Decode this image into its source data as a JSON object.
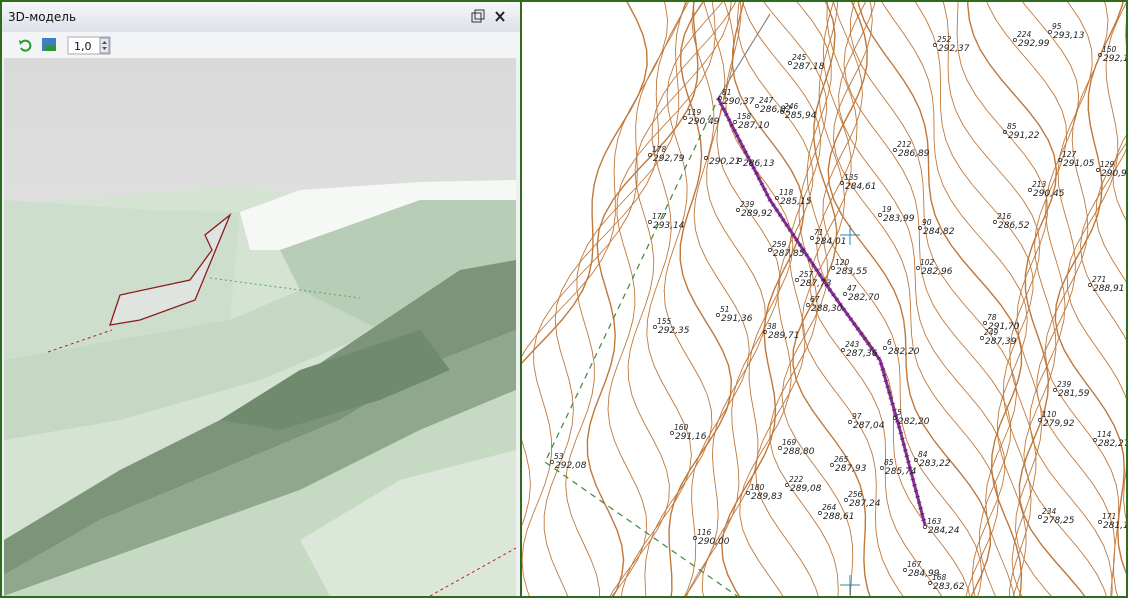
{
  "panel": {
    "title": "3D-модель",
    "scale": "1,0"
  },
  "map": {
    "labels": [
      {
        "id": "81",
        "elev": "290,37"
      },
      {
        "id": "119",
        "elev": "290,49"
      },
      {
        "id": "158",
        "elev": "287,10"
      },
      {
        "id": "247",
        "elev": "286,82"
      },
      {
        "id": "246",
        "elev": "285,94"
      },
      {
        "id": "245",
        "elev": "287,18"
      },
      {
        "id": "252",
        "elev": "292,37"
      },
      {
        "id": "224",
        "elev": "292,99"
      },
      {
        "id": "95",
        "elev": "293,13"
      },
      {
        "id": "150",
        "elev": "292,17"
      },
      {
        "id": "85",
        "elev": "291,22"
      },
      {
        "id": "212",
        "elev": "286,89"
      },
      {
        "id": "178",
        "elev": "292,79"
      },
      {
        "elev": "290,21"
      },
      {
        "elev": "286,13"
      },
      {
        "id": "127",
        "elev": "291,05"
      },
      {
        "id": "129",
        "elev": "290,97"
      },
      {
        "id": "135",
        "elev": "284,61"
      },
      {
        "id": "213",
        "elev": "290,45"
      },
      {
        "id": "118",
        "elev": "285,15"
      },
      {
        "id": "239",
        "elev": "289,92"
      },
      {
        "id": "177",
        "elev": "293,14"
      },
      {
        "id": "19",
        "elev": "283,99"
      },
      {
        "id": "90",
        "elev": "284,82"
      },
      {
        "id": "216",
        "elev": "286,52"
      },
      {
        "id": "71",
        "elev": "284,01"
      },
      {
        "id": "259",
        "elev": "287,85"
      },
      {
        "id": "120",
        "elev": "283,55"
      },
      {
        "id": "102",
        "elev": "282,96"
      },
      {
        "id": "257",
        "elev": "287,73"
      },
      {
        "id": "47",
        "elev": "282,70"
      },
      {
        "id": "271",
        "elev": "288,91"
      },
      {
        "id": "67",
        "elev": "288,30"
      },
      {
        "id": "51",
        "elev": "291,36"
      },
      {
        "id": "155",
        "elev": "292,35"
      },
      {
        "id": "38",
        "elev": "289,71"
      },
      {
        "id": "78",
        "elev": "291,70"
      },
      {
        "id": "249",
        "elev": "287,39"
      },
      {
        "id": "6",
        "elev": "282,20"
      },
      {
        "id": "243",
        "elev": "287,36"
      },
      {
        "id": "239",
        "elev": "281,59"
      },
      {
        "id": "97",
        "elev": "287,04"
      },
      {
        "id": "5",
        "elev": "282,20"
      },
      {
        "id": "110",
        "elev": "279,92"
      },
      {
        "id": "114",
        "elev": "282,27"
      },
      {
        "id": "160",
        "elev": "291,16"
      },
      {
        "id": "169",
        "elev": "288,80"
      },
      {
        "id": "84",
        "elev": "283,22"
      },
      {
        "id": "265",
        "elev": "287,93"
      },
      {
        "id": "85",
        "elev": "285,74"
      },
      {
        "id": "53",
        "elev": "292,08"
      },
      {
        "id": "222",
        "elev": "289,08"
      },
      {
        "id": "180",
        "elev": "289,83"
      },
      {
        "id": "256",
        "elev": "287,24"
      },
      {
        "id": "264",
        "elev": "288,61"
      },
      {
        "id": "234",
        "elev": "278,25"
      },
      {
        "id": "171",
        "elev": "281,13"
      },
      {
        "id": "163",
        "elev": "284,24"
      },
      {
        "id": "116",
        "elev": "290,00"
      },
      {
        "id": "167",
        "elev": "284,99"
      },
      {
        "id": "168",
        "elev": "283,62"
      }
    ]
  }
}
